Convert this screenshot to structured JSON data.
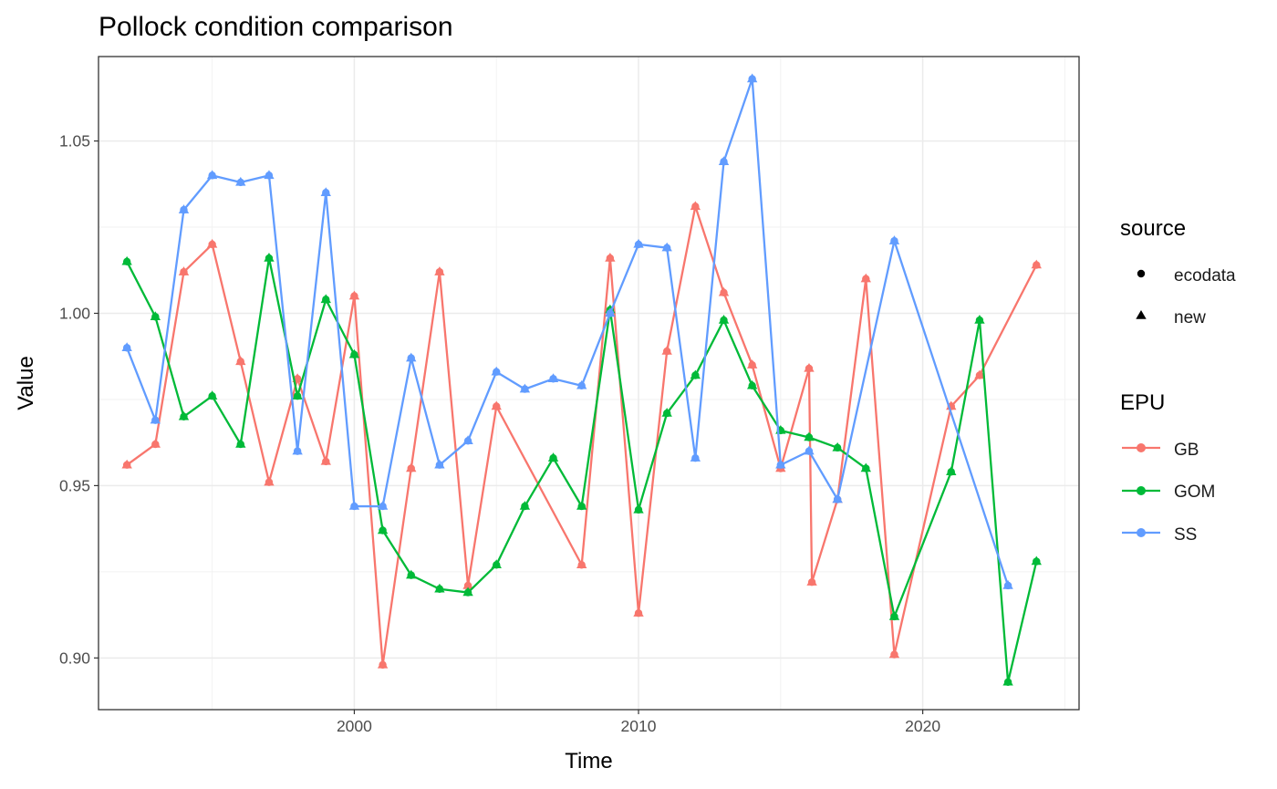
{
  "chart_data": {
    "type": "line",
    "title": "Pollock condition comparison",
    "xlabel": "Time",
    "ylabel": "Value",
    "xlim": [
      1991,
      2025.5
    ],
    "ylim": [
      0.885,
      1.0745
    ],
    "x_ticks": [
      2000,
      2010,
      2020
    ],
    "x_tick_labels": [
      "2000",
      "2010",
      "2020"
    ],
    "y_ticks": [
      0.9,
      0.95,
      1.0,
      1.05
    ],
    "y_tick_labels": [
      "0.90",
      "0.95",
      "1.00",
      "1.05"
    ],
    "grid": true,
    "legend_position": "right",
    "legends": {
      "source": {
        "title": "source",
        "entries": [
          {
            "label": "ecodata",
            "shape": "circle"
          },
          {
            "label": "new",
            "shape": "triangle"
          }
        ]
      },
      "epu": {
        "title": "EPU",
        "entries": [
          {
            "label": "GB",
            "color": "#F8766D"
          },
          {
            "label": "GOM",
            "color": "#00BA38"
          },
          {
            "label": "SS",
            "color": "#619CFF"
          }
        ]
      }
    },
    "series": [
      {
        "name": "GB",
        "color": "#F8766D",
        "points": [
          [
            1992,
            0.956
          ],
          [
            1993,
            0.962
          ],
          [
            1994,
            1.012
          ],
          [
            1995,
            1.02
          ],
          [
            1996,
            0.986
          ],
          [
            1997,
            0.951
          ],
          [
            1998,
            0.981
          ],
          [
            1999,
            0.957
          ],
          [
            2000,
            1.005
          ],
          [
            2001,
            0.898
          ],
          [
            2002,
            0.955
          ],
          [
            2003,
            1.012
          ],
          [
            2004,
            0.921
          ],
          [
            2005,
            0.973
          ],
          [
            2008,
            0.927
          ],
          [
            2009,
            1.016
          ],
          [
            2010,
            0.913
          ],
          [
            2011,
            0.989
          ],
          [
            2012,
            1.031
          ],
          [
            2013,
            1.006
          ],
          [
            2014,
            0.985
          ],
          [
            2015,
            0.955
          ],
          [
            2016,
            0.984
          ],
          [
            2016.1,
            0.922
          ],
          [
            2017,
            0.946
          ],
          [
            2018,
            1.01
          ],
          [
            2019,
            0.901
          ],
          [
            2021,
            0.973
          ],
          [
            2022,
            0.982
          ],
          [
            2024,
            1.014
          ]
        ]
      },
      {
        "name": "GOM",
        "color": "#00BA38",
        "points": [
          [
            1992,
            1.015
          ],
          [
            1993,
            0.999
          ],
          [
            1994,
            0.97
          ],
          [
            1995,
            0.976
          ],
          [
            1996,
            0.962
          ],
          [
            1997,
            1.016
          ],
          [
            1998,
            0.976
          ],
          [
            1999,
            1.004
          ],
          [
            2000,
            0.988
          ],
          [
            2001,
            0.937
          ],
          [
            2002,
            0.924
          ],
          [
            2003,
            0.92
          ],
          [
            2004,
            0.919
          ],
          [
            2005,
            0.927
          ],
          [
            2006,
            0.944
          ],
          [
            2007,
            0.958
          ],
          [
            2008,
            0.944
          ],
          [
            2009,
            1.001
          ],
          [
            2010,
            0.943
          ],
          [
            2011,
            0.971
          ],
          [
            2012,
            0.982
          ],
          [
            2013,
            0.998
          ],
          [
            2014,
            0.979
          ],
          [
            2015,
            0.966
          ],
          [
            2016,
            0.964
          ],
          [
            2017,
            0.961
          ],
          [
            2018,
            0.955
          ],
          [
            2019,
            0.912
          ],
          [
            2021,
            0.954
          ],
          [
            2022,
            0.998
          ],
          [
            2023,
            0.893
          ],
          [
            2024,
            0.928
          ]
        ]
      },
      {
        "name": "SS",
        "color": "#619CFF",
        "points": [
          [
            1992,
            0.99
          ],
          [
            1993,
            0.969
          ],
          [
            1994,
            1.03
          ],
          [
            1995,
            1.04
          ],
          [
            1996,
            1.038
          ],
          [
            1997,
            1.04
          ],
          [
            1998,
            0.96
          ],
          [
            1999,
            1.035
          ],
          [
            2000,
            0.944
          ],
          [
            2001,
            0.944
          ],
          [
            2002,
            0.987
          ],
          [
            2003,
            0.956
          ],
          [
            2004,
            0.963
          ],
          [
            2005,
            0.983
          ],
          [
            2006,
            0.978
          ],
          [
            2007,
            0.981
          ],
          [
            2008,
            0.979
          ],
          [
            2009,
            1.0
          ],
          [
            2010,
            1.02
          ],
          [
            2011,
            1.019
          ],
          [
            2012,
            0.958
          ],
          [
            2013,
            1.044
          ],
          [
            2014,
            1.068
          ],
          [
            2015,
            0.956
          ],
          [
            2016,
            0.96
          ],
          [
            2017,
            0.946
          ],
          [
            2019,
            1.021
          ],
          [
            2023,
            0.921
          ]
        ]
      }
    ]
  }
}
